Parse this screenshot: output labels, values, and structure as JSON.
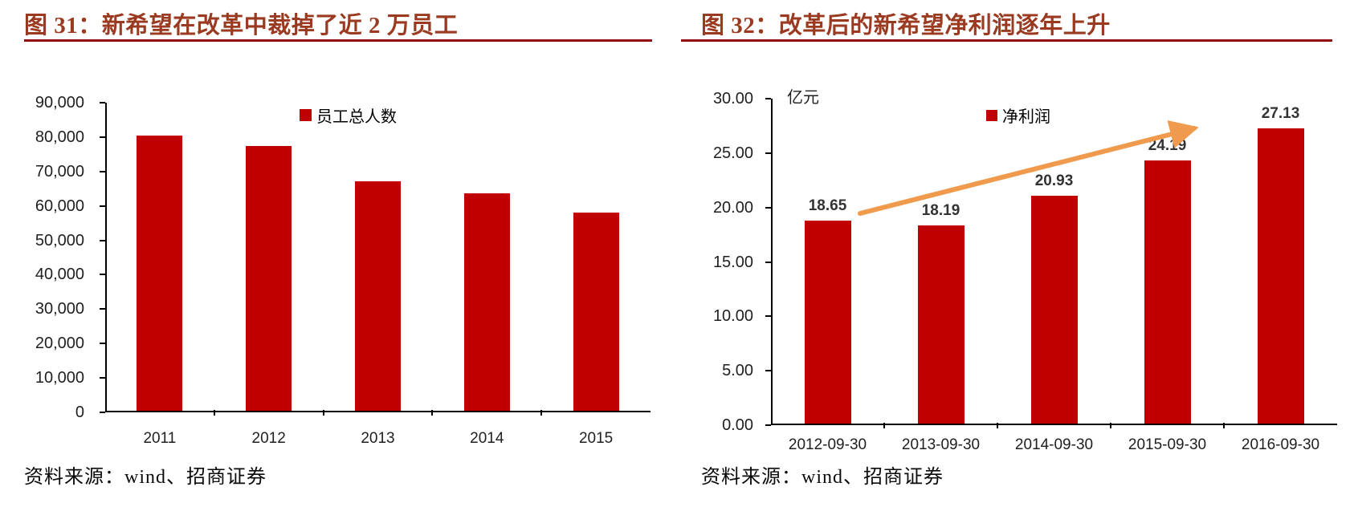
{
  "colors": {
    "bar_red": "#c00000",
    "title_red": "#9a3a20",
    "rule_dark_red": "#8e1110",
    "arrow_orange": "#f09a4e"
  },
  "panels": [
    {
      "title": "图 31：新希望在改革中裁掉了近 2 万员工",
      "legend_label": "员工总人数",
      "source": "资料来源：wind、招商证券"
    },
    {
      "title": "图 32：改革后的新希望净利润逐年上升",
      "legend_label": "净利润",
      "unit_label": "亿元",
      "source": "资料来源：wind、招商证券"
    }
  ],
  "chart_data": [
    {
      "type": "bar",
      "title": "图 31：新希望在改革中裁掉了近 2 万员工",
      "categories": [
        "2011",
        "2012",
        "2013",
        "2014",
        "2015"
      ],
      "series": [
        {
          "name": "员工总人数",
          "values": [
            79900,
            76900,
            66700,
            63200,
            57600
          ]
        }
      ],
      "ylim": [
        0,
        90000
      ],
      "ytick_step": 10000,
      "ytick_labels": [
        "0",
        "10,000",
        "20,000",
        "30,000",
        "40,000",
        "50,000",
        "60,000",
        "70,000",
        "80,000",
        "90,000"
      ],
      "legend_position": "top-center",
      "grid": false,
      "data_labels": null,
      "source": "资料来源：wind、招商证券"
    },
    {
      "type": "bar",
      "title": "图 32：改革后的新希望净利润逐年上升",
      "categories": [
        "2012-09-30",
        "2013-09-30",
        "2014-09-30",
        "2015-09-30",
        "2016-09-30"
      ],
      "series": [
        {
          "name": "净利润",
          "values": [
            18.65,
            18.19,
            20.93,
            24.19,
            27.13
          ]
        }
      ],
      "ylabel": "亿元",
      "ylim": [
        0,
        30
      ],
      "ytick_step": 5,
      "ytick_labels": [
        "0.00",
        "5.00",
        "10.00",
        "15.00",
        "20.00",
        "25.00",
        "30.00"
      ],
      "legend_position": "top-center",
      "grid": false,
      "data_labels": [
        "18.65",
        "18.19",
        "20.93",
        "24.19",
        "27.13"
      ],
      "annotation": "upward-trend-arrow",
      "source": "资料来源：wind、招商证券"
    }
  ]
}
